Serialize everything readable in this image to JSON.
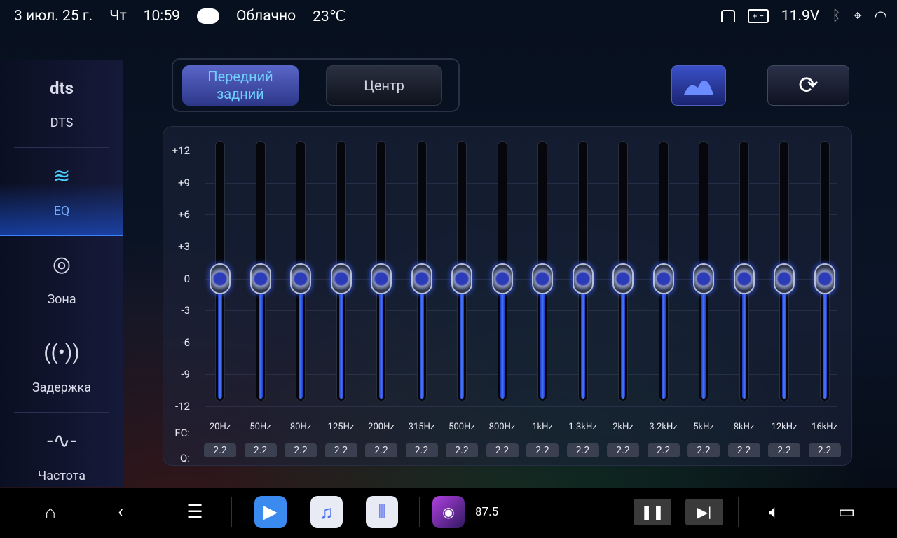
{
  "status": {
    "date": "3 июл. 25 г.",
    "weekday": "Чт",
    "time": "10:59",
    "weather_icon": "cloud-icon",
    "weather": "Облачно",
    "temp": "23℃",
    "voltage": "11.9V"
  },
  "sidebar": {
    "items": [
      {
        "label": "DTS",
        "icon": "dts-logo",
        "glyph": "dts"
      },
      {
        "label": "EQ",
        "icon": "eq-icon",
        "glyph": "≋",
        "active": true
      },
      {
        "label": "Зона",
        "icon": "zone-icon",
        "glyph": "◎"
      },
      {
        "label": "Задержка",
        "icon": "delay-icon",
        "glyph": "((•))"
      },
      {
        "label": "Частота",
        "icon": "frequency-icon",
        "glyph": "-∿-"
      }
    ]
  },
  "tabs": [
    {
      "label": "Передний задний",
      "active": true
    },
    {
      "label": "Центр"
    }
  ],
  "eq": {
    "y_ticks": [
      "+12",
      "+9",
      "+6",
      "+3",
      "0",
      "-3",
      "-6",
      "-9",
      "-12"
    ],
    "fc_label": "FC:",
    "q_label": "Q:",
    "range": [
      -12,
      12
    ],
    "bands": [
      {
        "freq": "20Hz",
        "gain": 0,
        "q": "2.2"
      },
      {
        "freq": "50Hz",
        "gain": 0,
        "q": "2.2"
      },
      {
        "freq": "80Hz",
        "gain": 0,
        "q": "2.2"
      },
      {
        "freq": "125Hz",
        "gain": 0,
        "q": "2.2"
      },
      {
        "freq": "200Hz",
        "gain": 0,
        "q": "2.2"
      },
      {
        "freq": "315Hz",
        "gain": 0,
        "q": "2.2"
      },
      {
        "freq": "500Hz",
        "gain": 0,
        "q": "2.2"
      },
      {
        "freq": "800Hz",
        "gain": 0,
        "q": "2.2"
      },
      {
        "freq": "1kHz",
        "gain": 0,
        "q": "2.2"
      },
      {
        "freq": "1.3kHz",
        "gain": 0,
        "q": "2.2"
      },
      {
        "freq": "2kHz",
        "gain": 0,
        "q": "2.2"
      },
      {
        "freq": "3.2kHz",
        "gain": 0,
        "q": "2.2"
      },
      {
        "freq": "5kHz",
        "gain": 0,
        "q": "2.2"
      },
      {
        "freq": "8kHz",
        "gain": 0,
        "q": "2.2"
      },
      {
        "freq": "12kHz",
        "gain": 0,
        "q": "2.2"
      },
      {
        "freq": "16kHz",
        "gain": 0,
        "q": "2.2"
      }
    ]
  },
  "bottom": {
    "radio_freq": "87.5"
  },
  "colors": {
    "accent": "#3a80ff",
    "active_tab_text": "#6fd0ff",
    "slider_fill": "#4a78ff"
  }
}
